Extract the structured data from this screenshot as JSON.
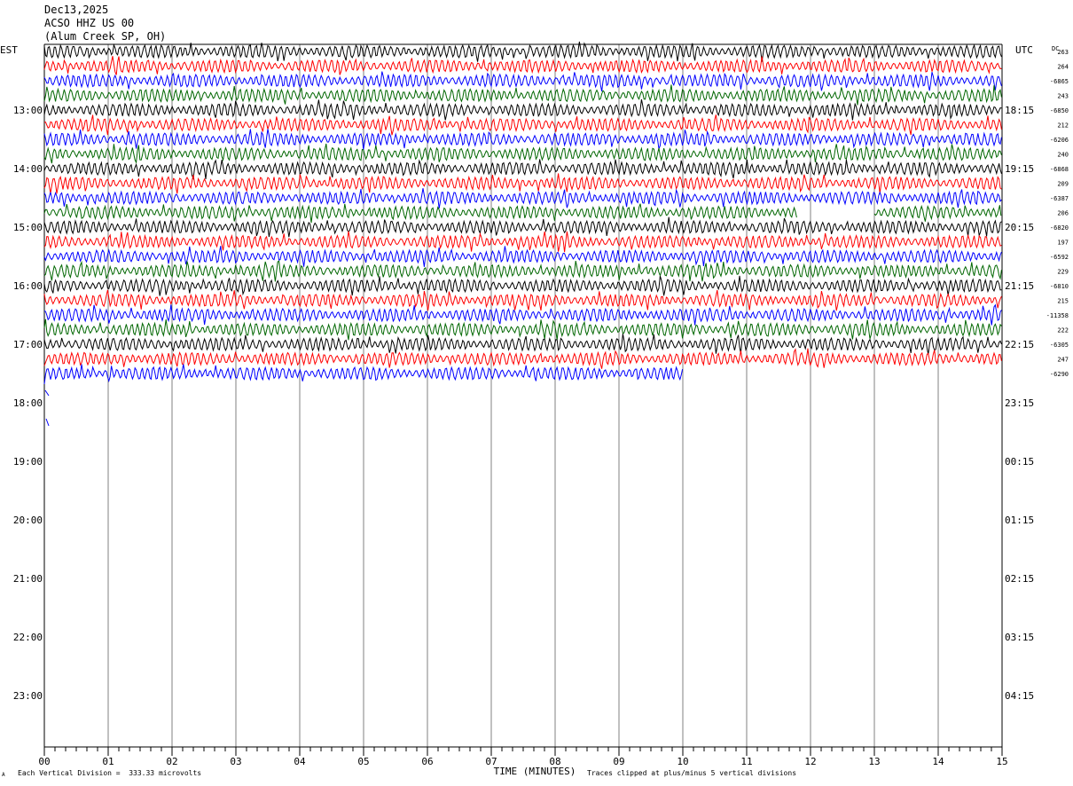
{
  "header": {
    "date": "Dec13,2025",
    "station": "ACSO HHZ US 00",
    "location": "(Alum Creek SP, OH)"
  },
  "left_tz": "EST",
  "right_tz": "UTC",
  "dc_label": "DC",
  "footer": {
    "scale_note": "Each Vertical Division =  333.33 microvolts",
    "clip_note": "Traces clipped at plus/minus 5 vertical divisions",
    "corner_mark": "A"
  },
  "colors": {
    "trace_cycle": [
      "#000000",
      "#ff0000",
      "#0000ff",
      "#006600"
    ],
    "grid": "#808080"
  },
  "chart_data": {
    "type": "line",
    "xlabel": "TIME (MINUTES)",
    "x_ticks": [
      "00",
      "01",
      "02",
      "03",
      "04",
      "05",
      "06",
      "07",
      "08",
      "09",
      "10",
      "11",
      "12",
      "13",
      "14",
      "15"
    ],
    "xlim": [
      0,
      15
    ],
    "rows_per_hour": 4,
    "left_hour_labels": [
      "13:00",
      "14:00",
      "15:00",
      "16:00",
      "17:00",
      "18:00",
      "19:00",
      "20:00",
      "21:00",
      "22:00",
      "23:00"
    ],
    "right_hour_labels": [
      "18:15",
      "19:15",
      "20:15",
      "21:15",
      "22:15",
      "23:15",
      "00:15",
      "01:15",
      "02:15",
      "03:15",
      "04:15"
    ],
    "dc_offsets": [
      "263",
      "264",
      "-6865",
      "243",
      "-6850",
      "212",
      "-6206",
      "240",
      "-6868",
      "209",
      "-6387",
      "206",
      "-6820",
      "197",
      "-6592",
      "229",
      "-6810",
      "215",
      "-11358",
      "222",
      "-6305",
      "247",
      "-6290"
    ],
    "recorded_rows": 23,
    "last_row_end_minute": 10,
    "data_gaps": [
      {
        "row": 11,
        "from_minute": 11.8,
        "to_minute": 13.0
      }
    ]
  }
}
